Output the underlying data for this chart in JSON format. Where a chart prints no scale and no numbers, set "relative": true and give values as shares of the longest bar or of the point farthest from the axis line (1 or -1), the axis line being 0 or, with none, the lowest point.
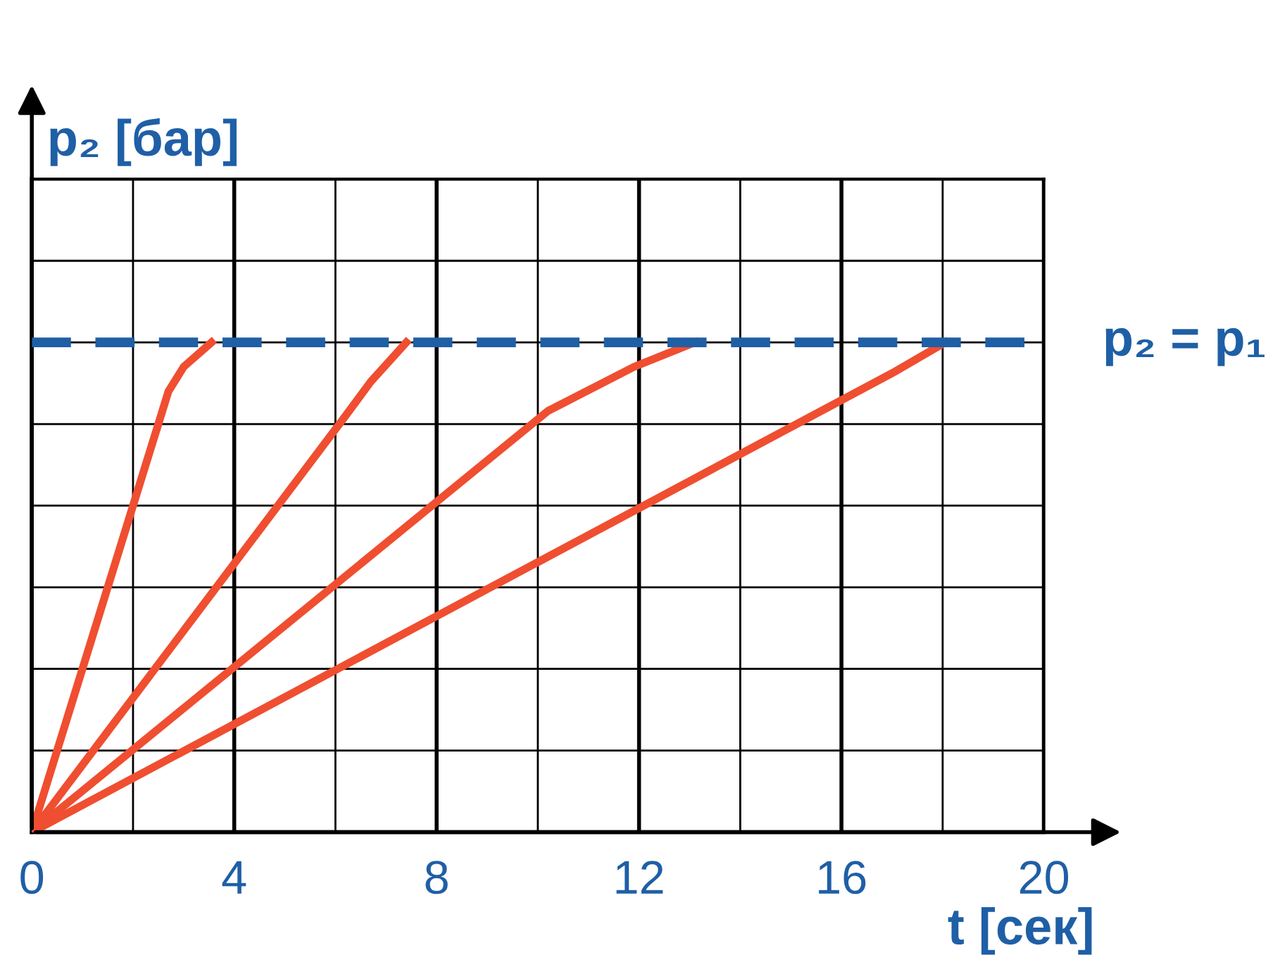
{
  "chart_data": {
    "type": "line",
    "relative": true,
    "xlabel": "t [сек]",
    "ylabel": "p₂ [бар]",
    "xlim": [
      0,
      20
    ],
    "xticks": [
      0,
      {
        "value": 2,
        "label": null
      },
      4,
      {
        "value": 6,
        "label": null
      },
      8,
      {
        "value": 10,
        "label": null
      },
      12,
      {
        "value": 14,
        "label": null
      },
      16,
      {
        "value": 18,
        "label": null
      },
      20
    ],
    "series": [
      {
        "color": "#f04e30",
        "x": [
          0,
          2.7,
          3.0,
          3.55
        ],
        "values": [
          0,
          0.9,
          0.95,
          1
        ]
      },
      {
        "color": "#f04e30",
        "x": [
          0,
          6.2,
          6.7,
          7.4
        ],
        "values": [
          0,
          0.85,
          0.92,
          1
        ]
      },
      {
        "color": "#f04e30",
        "x": [
          0,
          10.2,
          11.9,
          13.1
        ],
        "values": [
          0,
          0.86,
          0.95,
          1
        ]
      },
      {
        "color": "#f04e30",
        "x": [
          0,
          17.05,
          18.05
        ],
        "values": [
          0,
          0.94,
          1
        ]
      }
    ],
    "ref_lines": [
      {
        "axis": "y",
        "value": 1,
        "label": "p₂ = p₁",
        "color": "#1f5fa6",
        "line_style": "dashed"
      }
    ],
    "grid": true,
    "legend": false,
    "marker": "none",
    "line_style": "solid"
  }
}
